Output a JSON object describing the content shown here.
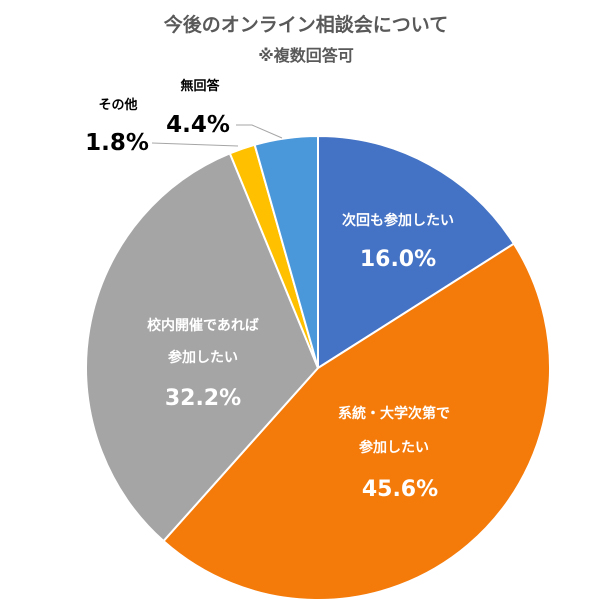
{
  "chart_data": {
    "type": "pie",
    "title": "今後のオンライン相談会について",
    "subtitle": "※複数回答可",
    "unit": "%",
    "slices": [
      {
        "label": "次回も参加したい",
        "value": 16.0,
        "display": "16.0%",
        "color": "#4472C4"
      },
      {
        "label": "系統・大学次第で参加したい",
        "value": 45.6,
        "display": "45.6%",
        "color": "#F47A0A"
      },
      {
        "label": "校内開催であれば参加したい",
        "value": 32.2,
        "display": "32.2%",
        "color": "#A5A5A5"
      },
      {
        "label": "その他",
        "value": 1.8,
        "display": "1.8%",
        "color": "#FFC000"
      },
      {
        "label": "無回答",
        "value": 4.4,
        "display": "4.4%",
        "color": "#4A97DA"
      }
    ]
  }
}
